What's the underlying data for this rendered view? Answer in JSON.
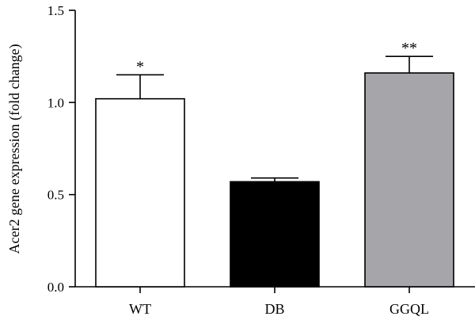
{
  "chart_data": {
    "type": "bar",
    "categories": [
      "WT",
      "DB",
      "GGQL"
    ],
    "values": [
      1.02,
      0.57,
      1.16
    ],
    "errors": [
      0.13,
      0.02,
      0.09
    ],
    "significance": [
      "*",
      "",
      "**"
    ],
    "bar_colors": [
      "#ffffff",
      "#000000",
      "#a5a5aa"
    ],
    "ylabel": "Acer2 gene expression (fold change)",
    "xlabel": "",
    "ylim": [
      0,
      1.5
    ],
    "yticks": [
      "0.0",
      "0.5",
      "1.0",
      "1.5"
    ],
    "grid": false,
    "legend": "none"
  }
}
